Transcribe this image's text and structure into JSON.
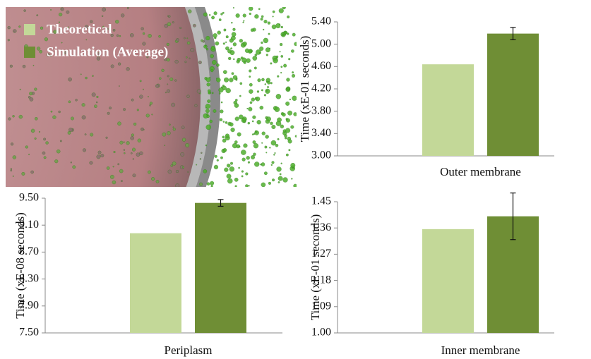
{
  "chart_data": [
    {
      "type": "bar",
      "y_label": "Time (xE-01 seconds)",
      "categories": [
        "Outer membrane"
      ],
      "series": [
        {
          "name": "Theoretical",
          "color": "#c3d898",
          "values": [
            4.64
          ]
        },
        {
          "name": "Simulation (Average)",
          "color": "#6f8e35",
          "values": [
            5.19
          ],
          "errors": [
            0.11
          ]
        }
      ],
      "ylim": [
        3,
        5.4
      ],
      "yticks": [
        {
          "value": 3,
          "label": "3.00"
        },
        {
          "value": 3.4,
          "label": "3.40"
        },
        {
          "value": 3.8,
          "label": "3.80"
        },
        {
          "value": 4.2,
          "label": "4.20"
        },
        {
          "value": 4.6,
          "label": "4.60"
        },
        {
          "value": 5,
          "label": "5.00"
        },
        {
          "value": 5.4,
          "label": "5.40"
        }
      ]
    },
    {
      "type": "bar",
      "y_label": "Time (xE-08 seconds)",
      "categories": [
        "Periplasm"
      ],
      "series": [
        {
          "color": "#c3d898",
          "values": [
            8.98
          ]
        },
        {
          "color": "#6f8e35",
          "values": [
            9.43
          ],
          "errors": [
            0.05
          ]
        }
      ],
      "ylim": [
        7.5,
        9.5
      ],
      "yticks": [
        {
          "value": 7.5,
          "label": "7.50"
        },
        {
          "value": 7.9,
          "label": "7.90"
        },
        {
          "value": 8.3,
          "label": "8.30"
        },
        {
          "value": 8.7,
          "label": "8.70"
        },
        {
          "value": 9.1,
          "label": "9.10"
        },
        {
          "value": 9.5,
          "label": "9.50"
        }
      ]
    },
    {
      "type": "bar",
      "y_label": "Time (xE-01 seconds)",
      "categories": [
        "Inner membrane"
      ],
      "series": [
        {
          "color": "#c3d898",
          "values": [
            1.356
          ]
        },
        {
          "color": "#6f8e35",
          "values": [
            1.4
          ],
          "errors": [
            0.08
          ]
        }
      ],
      "ylim": [
        1,
        1.45
      ],
      "yticks": [
        {
          "value": 1,
          "label": "1.00"
        },
        {
          "value": 1.09,
          "label": "1.09"
        },
        {
          "value": 1.18,
          "label": "1.18"
        },
        {
          "value": 1.27,
          "label": "1.27"
        },
        {
          "value": 1.36,
          "label": "1.36"
        },
        {
          "value": 1.45,
          "label": "1.45"
        }
      ]
    }
  ]
}
